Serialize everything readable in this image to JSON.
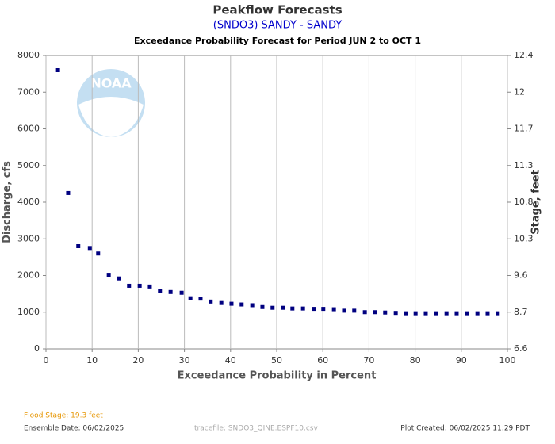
{
  "chart_data": {
    "type": "scatter",
    "title": "Peakflow Forecasts",
    "subtitle": "(SNDO3) SANDY - SANDY",
    "period": "Exceedance Probability Forecast for Period JUN 2 to OCT 1",
    "watermark": "NOAA",
    "x_label": "Exceedance Probability in Percent",
    "y_label": "Discharge, cfs",
    "y2_label": "Stage, feet",
    "xlim": [
      0,
      100
    ],
    "xticks": [
      0,
      10,
      20,
      30,
      40,
      50,
      60,
      70,
      80,
      90,
      100
    ],
    "ylim": [
      0,
      8000
    ],
    "yticks": [
      0,
      1000,
      2000,
      3000,
      4000,
      5000,
      6000,
      7000,
      8000
    ],
    "y2ticks": [
      6.6,
      8.7,
      9.6,
      10.3,
      10.8,
      11.3,
      11.7,
      12.0,
      12.4
    ],
    "grid": true,
    "series": [
      {
        "color": "#000080",
        "x": [
          2.6,
          4.8,
          7.0,
          9.5,
          11.3,
          13.6,
          15.8,
          18.0,
          20.3,
          22.5,
          24.7,
          27.0,
          29.4,
          31.3,
          33.5,
          35.7,
          38.0,
          40.2,
          42.4,
          44.7,
          46.9,
          49.1,
          51.4,
          53.4,
          55.7,
          58.0,
          60.1,
          62.4,
          64.6,
          66.8,
          69.1,
          71.3,
          73.5,
          75.8,
          78.0,
          80.1,
          82.3,
          84.5,
          86.8,
          89.0,
          91.2,
          93.5,
          95.7,
          97.9
        ],
        "values": [
          7600,
          4250,
          2800,
          2750,
          2600,
          2020,
          1920,
          1720,
          1720,
          1700,
          1570,
          1550,
          1530,
          1380,
          1370,
          1290,
          1250,
          1230,
          1210,
          1190,
          1140,
          1120,
          1120,
          1100,
          1100,
          1090,
          1090,
          1080,
          1040,
          1040,
          1000,
          1000,
          990,
          980,
          970,
          970,
          970,
          970,
          970,
          970,
          970,
          970,
          970,
          970
        ]
      }
    ],
    "footer": {
      "flood_stage": "Flood Stage: 19.3 feet",
      "ensemble_date": "Ensemble Date: 06/02/2025",
      "tracefile": "tracefile: SNDO3_QINE.ESPF10.csv",
      "plot_created": "Plot Created: 06/02/2025 11:29 PDT"
    }
  }
}
